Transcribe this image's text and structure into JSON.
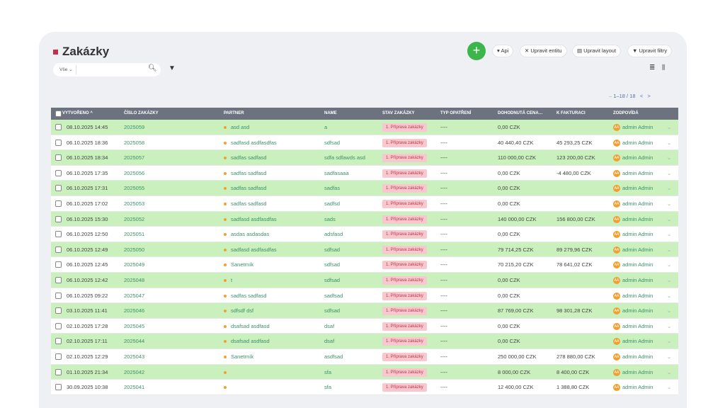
{
  "header": {
    "title": "Zakázky",
    "buttons": [
      "Api",
      "Upravit entitu",
      "Upravit layout",
      "Upravit filtry"
    ],
    "plus": "+"
  },
  "search": {
    "scope": "Vše"
  },
  "pagination": "1–18 / 18",
  "table": {
    "columns": [
      "VYTVOŘENO",
      "ČÍSLO ZAKÁZKY",
      "PARTNER",
      "NAME",
      "STAV ZAKÁZKY",
      "TYP OPATŘENÍ",
      "DOHODNUTÁ CENA…",
      "K FAKTURACI",
      "ZODPOVÍDÁ"
    ],
    "rows": [
      [
        "08.10.2025 14:45",
        "2025059",
        "asd asd",
        "a",
        "1. Příprava zakázky",
        "----",
        "0,00 CZK",
        null,
        "admin Admin"
      ],
      [
        "06.10.2025 18:36",
        "2025058",
        "sadfasd asdfasdfas",
        "sdfsad",
        "1. Příprava zakázky",
        "----",
        "40 440,40 CZK",
        "45 293,25 CZK",
        "admin Admin"
      ],
      [
        "06.10.2025 18:34",
        "2025057",
        "sadfas sadfasd",
        "sdfa sdfawds asd",
        "1. Příprava zakázky",
        "----",
        "110 000,00 CZK",
        "123 200,00 CZK",
        "admin Admin"
      ],
      [
        "06.10.2025 17:35",
        "2025056",
        "sadfas sadfasd",
        "sadfasaaa",
        "1. Příprava zakázky",
        "----",
        "0,00 CZK",
        "-4 480,00 CZK",
        "admin Admin"
      ],
      [
        "06.10.2025 17:31",
        "2025055",
        "sadfas sadfasd",
        "sadfas",
        "1. Příprava zakázky",
        "----",
        "0,00 CZK",
        null,
        "admin Admin"
      ],
      [
        "06.10.2025 17:02",
        "2025053",
        "sadfas sadfasd",
        "sadfsd",
        "1. Příprava zakázky",
        "----",
        "0,00 CZK",
        null,
        "admin Admin"
      ],
      [
        "06.10.2025 15:30",
        "2025052",
        "sadfasd asdfasdfas",
        "sads",
        "1. Příprava zakázky",
        "----",
        "140 000,00 CZK",
        "156 800,00 CZK",
        "admin Admin"
      ],
      [
        "06.10.2025 12:50",
        "2025051",
        "asdas asdasdas",
        "adsfasd",
        "1. Příprava zakázky",
        "----",
        "0,00 CZK",
        null,
        "admin Admin"
      ],
      [
        "06.10.2025 12:49",
        "2025050",
        "sadfasd asdfasdfas",
        "sdfsad",
        "1. Příprava zakázky",
        "----",
        "79 714,25 CZK",
        "89 279,96 CZK",
        "admin Admin"
      ],
      [
        "06.10.2025 12:45",
        "2025049",
        "Sanetrník",
        "sdfsad",
        "1. Příprava zakázky",
        "----",
        "70 215,20 CZK",
        "78 641,02 CZK",
        "admin Admin"
      ],
      [
        "06.10.2025 12:42",
        "2025048",
        "t",
        "sdfsad",
        "1. Příprava zakázky",
        "----",
        "0,00 CZK",
        null,
        "admin Admin"
      ],
      [
        "06.10.2025 09:22",
        "2025047",
        "sadfas sadfasd",
        "sadfsad",
        "1. Příprava zakázky",
        "----",
        "0,00 CZK",
        null,
        "admin Admin"
      ],
      [
        "03.10.2025 11:41",
        "2025046",
        "sdfsdf dsf",
        "sdfsad",
        "1. Příprava zakázky",
        "----",
        "87 769,00 CZK",
        "98 301,28 CZK",
        "admin Admin"
      ],
      [
        "02.10.2025 17:28",
        "2025045",
        "dsafsad asdfasd",
        "dsaf",
        "1. Příprava zakázky",
        "----",
        "0,00 CZK",
        null,
        "admin Admin"
      ],
      [
        "02.10.2025 17:11",
        "2025044",
        "dsafsad asdfasd",
        "dsaf",
        "1. Příprava zakázky",
        "----",
        "0,00 CZK",
        null,
        "admin Admin"
      ],
      [
        "02.10.2025 12:29",
        "2025043",
        "Sanetrník",
        "asdfsad",
        "1. Příprava zakázky",
        "----",
        "250 000,00 CZK",
        "278 880,00 CZK",
        "admin Admin"
      ],
      [
        "01.10.2025 21:34",
        "2025042",
        null,
        "sfa",
        "1. Příprava zakázky",
        "----",
        "8 000,00 CZK",
        "8 400,00 CZK",
        "admin Admin"
      ],
      [
        "30.09.2025 10:38",
        "2025041",
        null,
        "sfa",
        "1. Příprava zakázky",
        "----",
        "12 400,00 CZK",
        "1 388,80 CZK",
        "admin Admin"
      ]
    ]
  },
  "avatar": "AA"
}
